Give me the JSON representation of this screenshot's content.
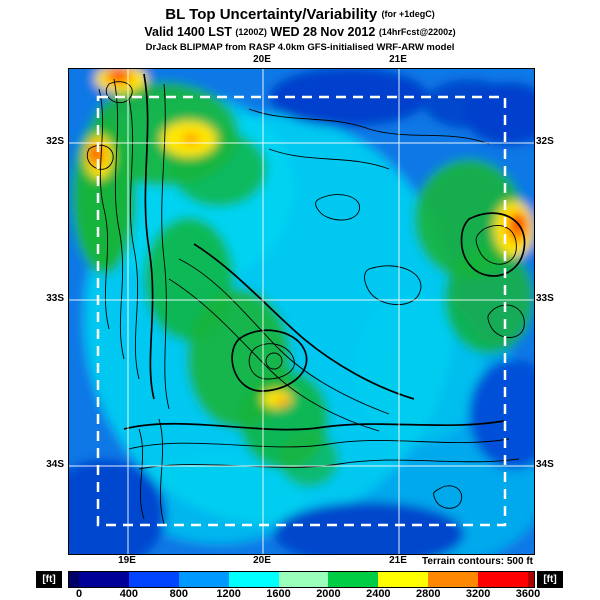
{
  "header": {
    "title": "BL Top Uncertainty/Variability",
    "title_note": "(for +1degC)",
    "valid_prefix": "Valid 1400 LST",
    "valid_znote": "(1200Z)",
    "valid_date": "WED 28 Nov 2012",
    "valid_fcst_note": "(14hrFcst@2200z)",
    "model_line": "DrJack BLIPMAP from RASP 4.0km GFS-initialised WRF-ARW model"
  },
  "axes": {
    "top": [
      "20E",
      "21E"
    ],
    "bottom": [
      "19E",
      "20E",
      "21E"
    ],
    "left": [
      "32S",
      "33S",
      "34S"
    ],
    "right": [
      "32S",
      "33S",
      "34S"
    ]
  },
  "legend": {
    "terrain_note": "Terrain contours: 500 ft",
    "unit": "[ft]",
    "ticks": [
      "0",
      "400",
      "800",
      "1200",
      "1600",
      "2000",
      "2400",
      "2800",
      "3200",
      "3600"
    ],
    "cap_left_color": "#000066",
    "cap_right_color": "#aa0000",
    "colors": [
      "#000099",
      "#0044ff",
      "#0099ff",
      "#00ffff",
      "#99ffbb",
      "#00cc44",
      "#ffff00",
      "#ff8800",
      "#ff0000"
    ]
  },
  "chart_data": {
    "type": "heatmap",
    "title": "BL Top Uncertainty/Variability (for +1degC)",
    "units": "ft",
    "scale_ticks": [
      0,
      400,
      800,
      1200,
      1600,
      2000,
      2400,
      2800,
      3200,
      3600
    ],
    "x_axis_labels": [
      "19E",
      "20E",
      "21E"
    ],
    "y_axis_labels": [
      "32S",
      "33S",
      "34S"
    ],
    "terrain_contour_interval_ft": 500
  }
}
